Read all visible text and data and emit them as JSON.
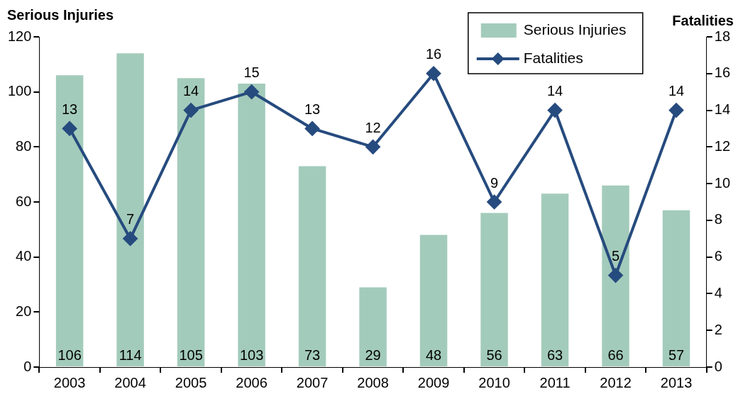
{
  "chart_data": {
    "type": "bar",
    "ylabel": "Serious Injuries",
    "y2label": "Fatalities",
    "categories": [
      "2003",
      "2004",
      "2005",
      "2006",
      "2007",
      "2008",
      "2009",
      "2010",
      "2011",
      "2012",
      "2013"
    ],
    "series": [
      {
        "name": "Serious Injuries",
        "color": "#a3cbbb",
        "values": [
          106,
          114,
          105,
          103,
          73,
          29,
          48,
          56,
          63,
          66,
          57
        ]
      },
      {
        "name": "Fatalities",
        "type": "line",
        "axis": "y2",
        "color": "#264b7e",
        "marker": "diamond",
        "values": [
          13,
          7,
          14,
          15,
          13,
          12,
          16,
          9,
          14,
          5,
          14
        ]
      }
    ],
    "ylim": [
      0,
      120
    ],
    "yticks": [
      0,
      20,
      40,
      60,
      80,
      100,
      120
    ],
    "y2lim": [
      0,
      18
    ],
    "y2ticks": [
      0,
      2,
      4,
      6,
      8,
      10,
      12,
      14,
      16,
      18
    ],
    "data_labels": true,
    "legend": "top right"
  }
}
